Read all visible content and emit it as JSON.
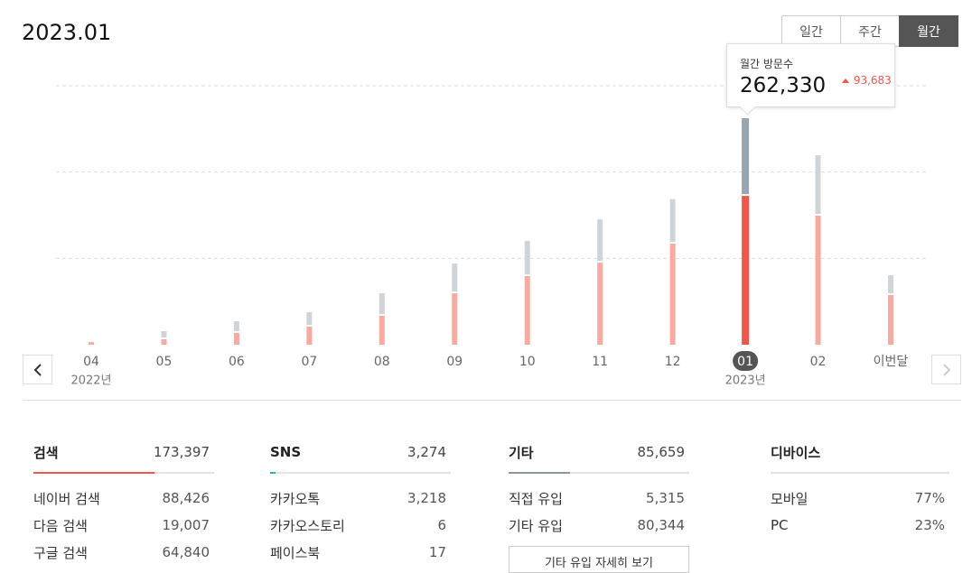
{
  "header": {
    "title": "2023.01",
    "tabs": [
      "일간",
      "주간",
      "월간"
    ],
    "active_tab": 2
  },
  "chart_data": {
    "type": "bar",
    "stacked": true,
    "categories": [
      "04",
      "05",
      "06",
      "07",
      "08",
      "09",
      "10",
      "11",
      "12",
      "01",
      "02",
      "이번달"
    ],
    "x_sublabels": [
      "2022년",
      null,
      null,
      null,
      null,
      null,
      null,
      null,
      null,
      "2023년",
      null,
      null
    ],
    "series": [
      {
        "color": "#f9a99d",
        "selected_color": "#f2554a",
        "values": [
          3000,
          7300,
          14600,
          22000,
          34500,
          60600,
          80500,
          96100,
          118000,
          173397,
          150500,
          58500
        ]
      },
      {
        "color": "#cfd4d9",
        "selected_color": "#98a4b0",
        "values": [
          0,
          8400,
          12500,
          15700,
          25100,
          33400,
          39700,
          49100,
          50647,
          88933,
          69000,
          21900
        ]
      }
    ],
    "ylim": [
      0,
      300000
    ],
    "yticks": [
      100000,
      200000,
      300000
    ],
    "grid": true,
    "selected": 9,
    "tooltip": {
      "title": "월간 방문수",
      "value": "262,330",
      "change": "93,683"
    }
  },
  "sections": [
    {
      "title": "검색",
      "total": "173,397",
      "rows": [
        [
          "네이버 검색",
          "88,426"
        ],
        [
          "다음 검색",
          "19,007"
        ],
        [
          "구글 검색",
          "64,840"
        ]
      ]
    },
    {
      "title": "SNS",
      "total": "3,274",
      "rows": [
        [
          "카카오톡",
          "3,218"
        ],
        [
          "카카오스토리",
          "6"
        ],
        [
          "페이스북",
          "17"
        ]
      ]
    },
    {
      "title": "기타",
      "total": "85,659",
      "rows": [
        [
          "직접 유입",
          "5,315"
        ],
        [
          "기타 유입",
          "80,344"
        ]
      ],
      "button": "기타 유입 자세히 보기"
    },
    {
      "title": "디바이스",
      "rows": [
        [
          "모바일",
          "77%"
        ],
        [
          "PC",
          "23%"
        ]
      ]
    }
  ]
}
